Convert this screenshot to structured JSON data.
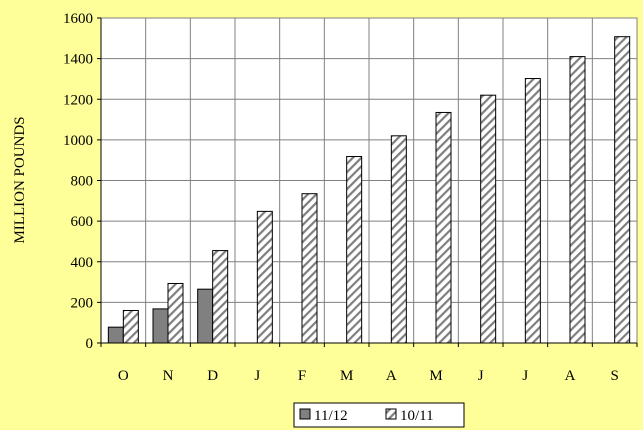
{
  "chart_data": {
    "type": "bar",
    "title": "",
    "xlabel": "",
    "ylabel": "MILLION POUNDS",
    "ylim": [
      0,
      1600
    ],
    "yticks": [
      0,
      200,
      400,
      600,
      800,
      1000,
      1200,
      1400,
      1600
    ],
    "categories": [
      "O",
      "N",
      "D",
      "J",
      "F",
      "M",
      "A",
      "M",
      "J",
      "J",
      "A",
      "S"
    ],
    "series": [
      {
        "name": "11/12",
        "values": [
          78,
          168,
          265,
          null,
          null,
          null,
          null,
          null,
          null,
          null,
          null,
          null
        ],
        "color": "#808080",
        "pattern": "solid"
      },
      {
        "name": "10/11",
        "values": [
          160,
          293,
          455,
          648,
          735,
          918,
          1020,
          1135,
          1220,
          1302,
          1410,
          1508
        ],
        "color": "#FFFFFF",
        "pattern": "diagonal-hatch"
      }
    ],
    "grid": true,
    "legend_position": "bottom",
    "plot_background": "#FFFFFF"
  }
}
